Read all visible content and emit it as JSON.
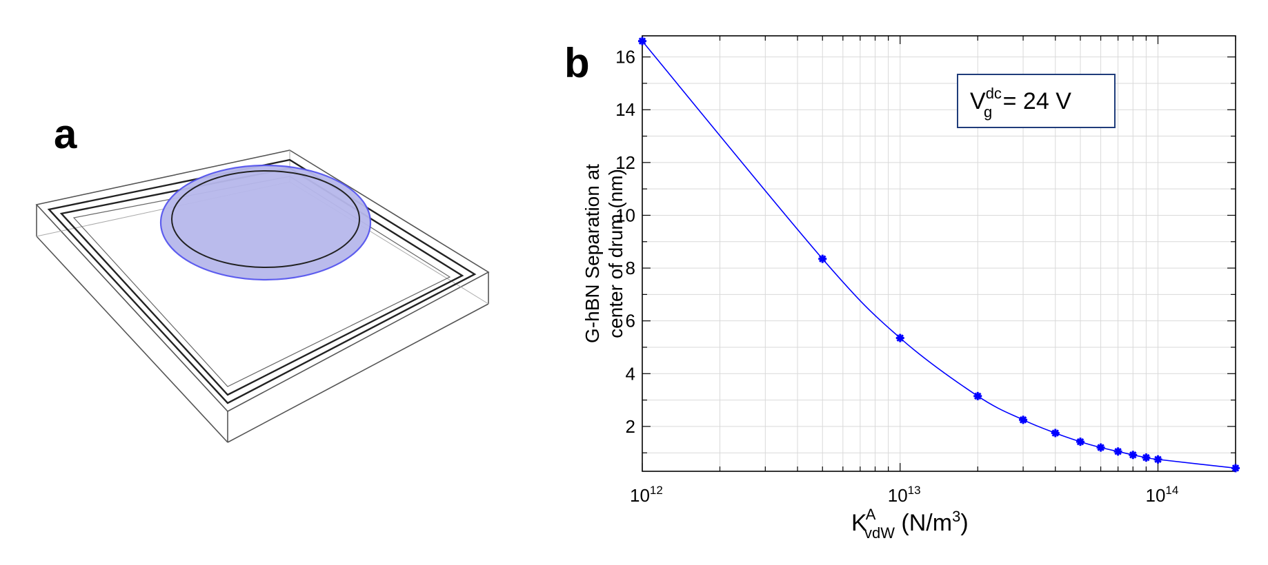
{
  "panels": {
    "a_label": "a",
    "b_label": "b"
  },
  "colors": {
    "series": "#0000ff",
    "disk_fill": "#b7b8ec",
    "disk_edge": "#5555ee",
    "annotation_border": "#1f3c7a"
  },
  "schematic": {
    "description_icon": "graphene-drum-schematic"
  },
  "chart_data": {
    "type": "line",
    "xscale": "log",
    "xlim": [
      1000000000000.0,
      200000000000000.0
    ],
    "ylim": [
      0.3,
      16.8
    ],
    "xticks": [
      {
        "value": 1000000000000.0,
        "base": "10",
        "exp": "12"
      },
      {
        "value": 10000000000000.0,
        "base": "10",
        "exp": "13"
      },
      {
        "value": 100000000000000.0,
        "base": "10",
        "exp": "14"
      }
    ],
    "yticks": [
      2,
      4,
      6,
      8,
      10,
      12,
      14,
      16
    ],
    "ylabel_line1": "G-hBN Separation at",
    "ylabel_line2": "center of drum  (nm)",
    "xlabel": {
      "main": "K",
      "sub": "vdW",
      "sup": "A",
      "unit_pre": " (N/m",
      "unit_sup": "3",
      "unit_post": ")"
    },
    "annotation": {
      "main": "V",
      "sub": "g",
      "sup": "dc",
      "rest": " = 24 V"
    },
    "grid": true,
    "series": [
      {
        "name": "separation",
        "marker": "asterisk",
        "x": [
          1000000000000.0,
          5000000000000.0,
          10000000000000.0,
          20000000000000.0,
          30000000000000.0,
          40000000000000.0,
          50000000000000.0,
          60000000000000.0,
          70000000000000.0,
          80000000000000.0,
          90000000000000.0,
          100000000000000.0,
          200000000000000.0
        ],
        "y": [
          16.6,
          8.35,
          5.35,
          3.15,
          2.25,
          1.75,
          1.42,
          1.2,
          1.05,
          0.92,
          0.82,
          0.75,
          0.42
        ]
      }
    ]
  }
}
